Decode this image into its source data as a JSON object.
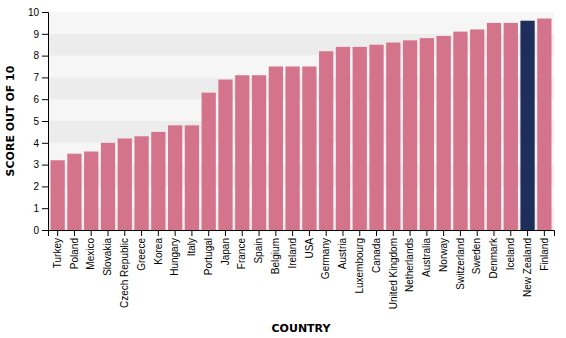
{
  "chart_data": {
    "type": "bar",
    "categories": [
      "Turkey",
      "Poland",
      "Mexico",
      "Slovakia",
      "Czech Republic",
      "Greece",
      "Korea",
      "Hungary",
      "Italy",
      "Portugal",
      "Japan",
      "France",
      "Spain",
      "Belgium",
      "Ireland",
      "USA",
      "Germany",
      "Austria",
      "Luxembourg",
      "Canada",
      "United Kingdom",
      "Netherlands",
      "Australia",
      "Norway",
      "Switzerland",
      "Sweden",
      "Denmark",
      "Iceland",
      "New Zealand",
      "Finland"
    ],
    "values": [
      3.2,
      3.5,
      3.6,
      4.0,
      4.2,
      4.3,
      4.5,
      4.8,
      4.8,
      6.3,
      6.9,
      7.1,
      7.1,
      7.5,
      7.5,
      7.5,
      8.2,
      8.4,
      8.4,
      8.5,
      8.6,
      8.7,
      8.8,
      8.9,
      9.1,
      9.2,
      9.5,
      9.5,
      9.6,
      9.7
    ],
    "colors": [
      "#d4748c",
      "#d4748c",
      "#d4748c",
      "#d4748c",
      "#d4748c",
      "#d4748c",
      "#d4748c",
      "#d4748c",
      "#d4748c",
      "#d4748c",
      "#d4748c",
      "#d4748c",
      "#d4748c",
      "#d4748c",
      "#d4748c",
      "#d4748c",
      "#d4748c",
      "#d4748c",
      "#d4748c",
      "#d4748c",
      "#d4748c",
      "#d4748c",
      "#d4748c",
      "#d4748c",
      "#d4748c",
      "#d4748c",
      "#d4748c",
      "#d4748c",
      "#1e2d5a",
      "#d4748c"
    ],
    "xlabel": "COUNTRY",
    "ylabel": "SCORE OUT OF 10",
    "ylim": [
      0,
      10
    ],
    "yticks": [
      0,
      1,
      2,
      3,
      4,
      5,
      6,
      7,
      8,
      9,
      10
    ],
    "grid": true
  }
}
